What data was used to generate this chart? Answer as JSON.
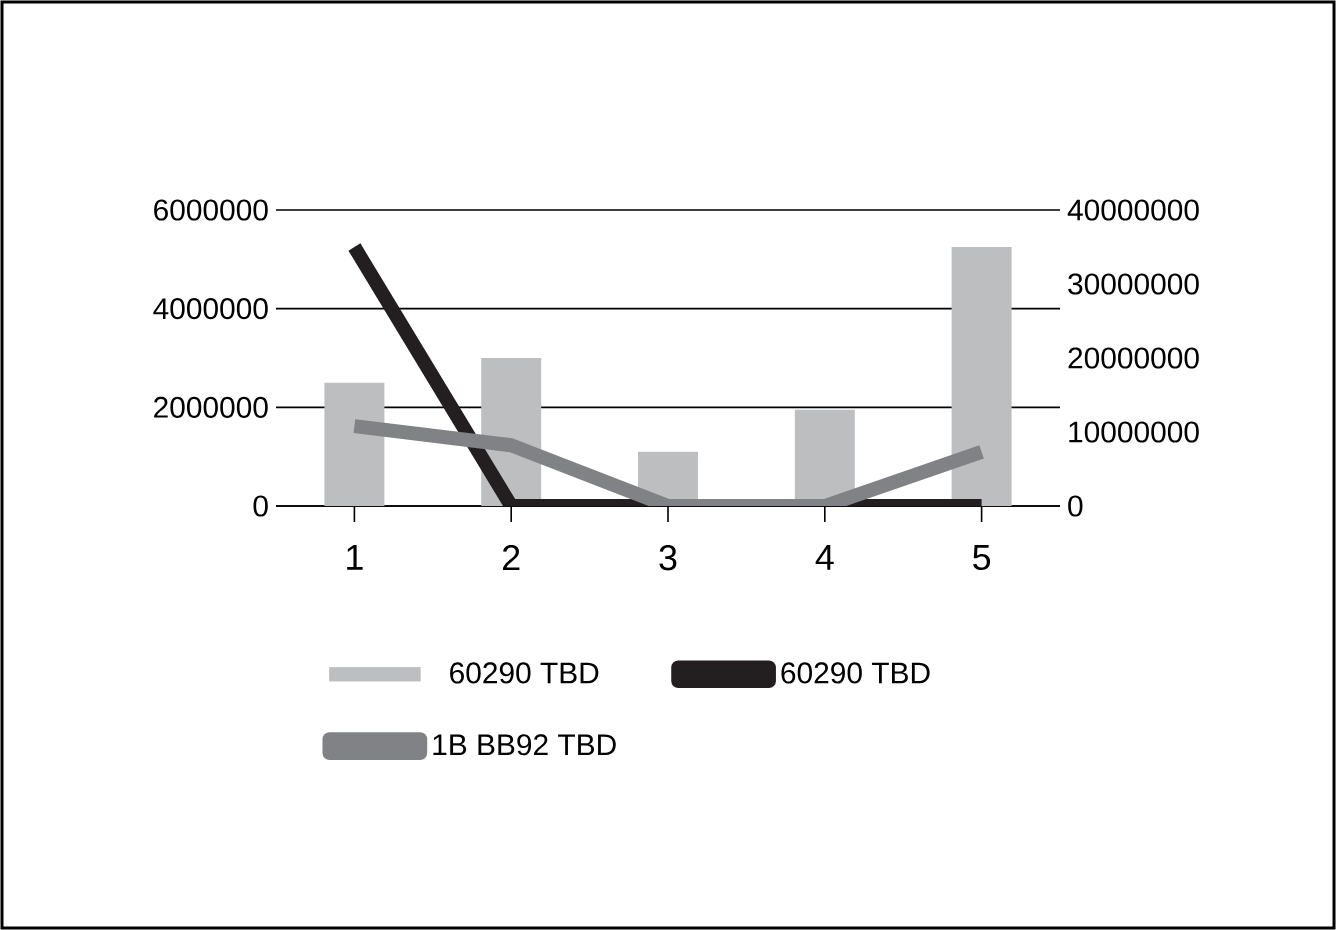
{
  "chart_data": {
    "type": "bar",
    "categories": [
      "1",
      "2",
      "3",
      "4",
      "5"
    ],
    "series": [
      {
        "name": "60290 TBD",
        "color": "#bcbec0",
        "values": [
          2500000,
          3000000,
          1100000,
          1950000,
          5250000
        ]
      },
      {
        "name": "60290 TBD",
        "type": "line",
        "axis": "y2",
        "color": "#231f20",
        "values": [
          35000000,
          0,
          0,
          0,
          0
        ]
      },
      {
        "name": "1B BB92 TBD",
        "type": "line",
        "axis": "y2",
        "color": "#808285",
        "values": [
          10800000,
          8200000,
          0,
          0,
          7300000
        ]
      }
    ],
    "ylim": [
      0,
      6000000
    ],
    "yticks": [
      0,
      2000000,
      4000000,
      6000000
    ],
    "y2lim": [
      0,
      40000000
    ],
    "y2ticks": [
      0,
      10000000,
      20000000,
      30000000,
      40000000
    ],
    "grid": "y",
    "legend": "bottom"
  }
}
